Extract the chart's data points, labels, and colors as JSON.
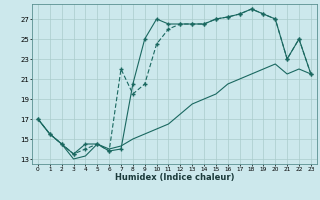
{
  "xlabel": "Humidex (Indice chaleur)",
  "bg_color": "#cce8ec",
  "grid_color": "#aacccc",
  "line_color": "#1a6860",
  "xlim": [
    -0.5,
    23.5
  ],
  "ylim": [
    12.5,
    28.5
  ],
  "xticks": [
    0,
    1,
    2,
    3,
    4,
    5,
    6,
    7,
    8,
    9,
    10,
    11,
    12,
    13,
    14,
    15,
    16,
    17,
    18,
    19,
    20,
    21,
    22,
    23
  ],
  "yticks": [
    13,
    15,
    17,
    19,
    21,
    23,
    25,
    27
  ],
  "line1_x": [
    0,
    1,
    2,
    3,
    4,
    5,
    6,
    7,
    8,
    9,
    10,
    11,
    12,
    13,
    14,
    15,
    16,
    17,
    18,
    19,
    20,
    21,
    22,
    23
  ],
  "line1_y": [
    17,
    15.5,
    14.5,
    13.5,
    14.5,
    14.5,
    13.8,
    14.0,
    20.5,
    25.0,
    27.0,
    26.5,
    26.5,
    26.5,
    26.5,
    27.0,
    27.2,
    27.5,
    28.0,
    27.5,
    27.0,
    23.0,
    25.0,
    21.5
  ],
  "line2_x": [
    0,
    1,
    2,
    3,
    4,
    5,
    6,
    7,
    8,
    9,
    10,
    11,
    12,
    13,
    14,
    15,
    16,
    17,
    18,
    19,
    20,
    21,
    22,
    23
  ],
  "line2_y": [
    17,
    15.5,
    14.5,
    13.5,
    14.0,
    14.5,
    13.8,
    22.0,
    19.5,
    20.5,
    24.5,
    26.0,
    26.5,
    26.5,
    26.5,
    27.0,
    27.2,
    27.5,
    28.0,
    27.5,
    27.0,
    23.0,
    25.0,
    21.5
  ],
  "line3_x": [
    0,
    1,
    2,
    3,
    4,
    5,
    6,
    7,
    8,
    9,
    10,
    11,
    12,
    13,
    14,
    15,
    16,
    17,
    18,
    19,
    20,
    21,
    22,
    23
  ],
  "line3_y": [
    17,
    15.5,
    14.5,
    13.0,
    13.3,
    14.5,
    14.0,
    14.3,
    15.0,
    15.5,
    16.0,
    16.5,
    17.5,
    18.5,
    19.0,
    19.5,
    20.5,
    21.0,
    21.5,
    22.0,
    22.5,
    21.5,
    22.0,
    21.5
  ]
}
